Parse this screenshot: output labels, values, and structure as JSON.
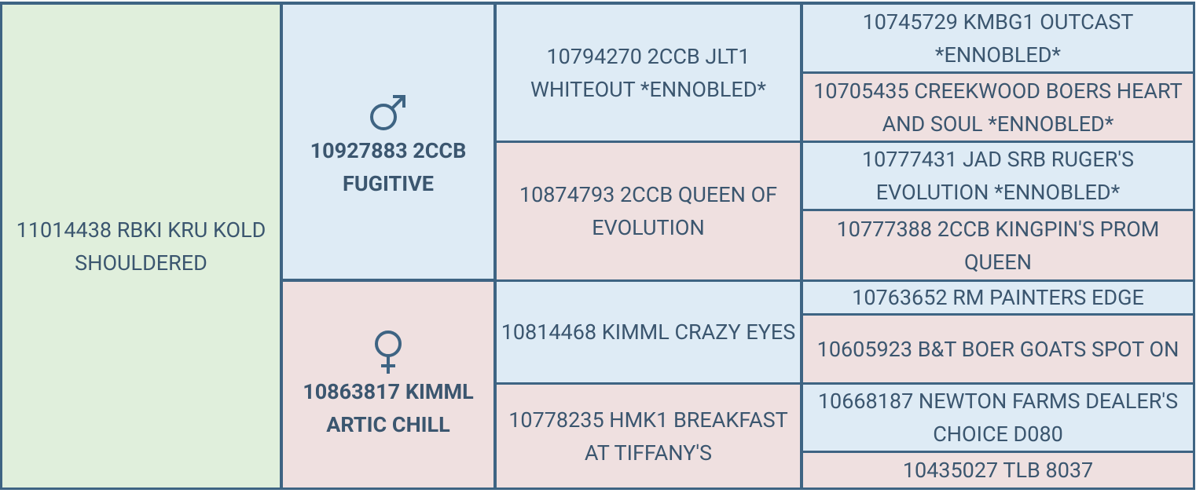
{
  "pedigree": {
    "subject": "11014438 RBKI KRU KOLD SHOULDERED",
    "parents": [
      "10927883 2CCB FUGITIVE",
      "10863817 KIMML ARTIC CHILL"
    ],
    "grandparents": [
      "10794270 2CCB JLT1 WHITEOUT *ENNOBLED*",
      "10874793 2CCB QUEEN OF EVOLUTION",
      "10814468 KIMML CRAZY EYES",
      "10778235 HMK1 BREAKFAST AT TIFFANY'S"
    ],
    "great_grandparents": [
      "10745729 KMBG1 OUTCAST *ENNOBLED*",
      "10705435 CREEKWOOD BOERS HEART AND SOUL *ENNOBLED*",
      "10777431 JAD SRB RUGER'S EVOLUTION *ENNOBLED*",
      "10777388 2CCB KINGPIN'S PROM QUEEN",
      "10763652 RM PAINTERS EDGE",
      "10605923 B&T BOER GOATS SPOT ON",
      "10668187 NEWTON FARMS DEALER'S CHOICE D080",
      "10435027 TLB 8037"
    ]
  }
}
